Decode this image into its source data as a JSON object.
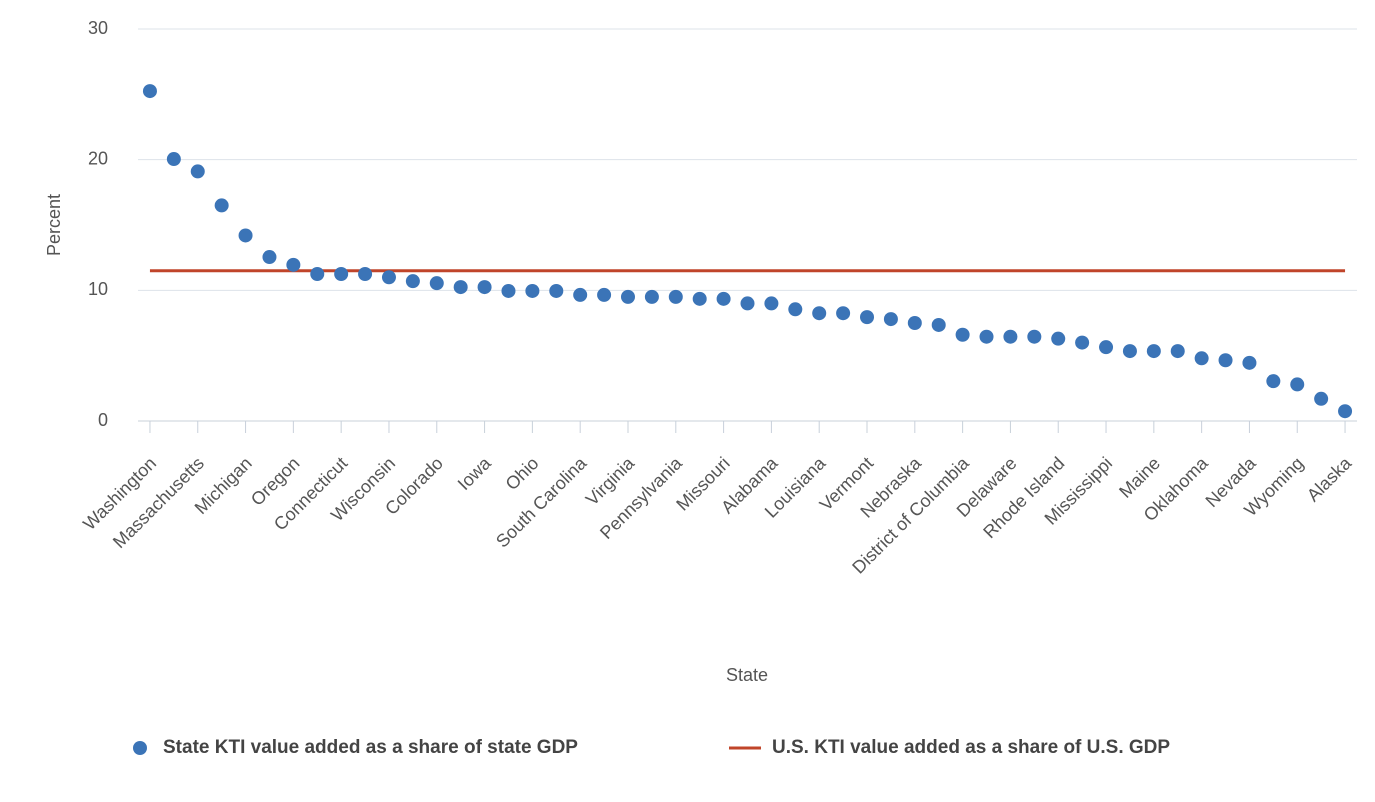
{
  "chart_data": {
    "type": "scatter",
    "x_label": "State",
    "y_label": "Percent",
    "categories": [
      "Washington",
      null,
      "Massachusetts",
      null,
      "Michigan",
      null,
      "Oregon",
      null,
      "Connecticut",
      null,
      "Wisconsin",
      null,
      "Colorado",
      null,
      "Iowa",
      null,
      "Ohio",
      null,
      "South Carolina",
      null,
      "Virginia",
      null,
      "Pennsylvania",
      null,
      "Missouri",
      null,
      "Alabama",
      null,
      "Louisiana",
      null,
      "Vermont",
      null,
      "Nebraska",
      null,
      "District of Columbia",
      null,
      "Delaware",
      null,
      "Rhode Island",
      null,
      "Mississippi",
      null,
      "Maine",
      null,
      "Oklahoma",
      null,
      "Nevada",
      null,
      "Wyoming",
      null,
      "Alaska"
    ],
    "series": [
      {
        "name": "State KTI value added as a share of state GDP",
        "color": "#3b74b7",
        "values": [
          25.25,
          20.05,
          19.1,
          16.5,
          14.2,
          12.55,
          11.95,
          11.25,
          11.25,
          11.25,
          11.0,
          10.7,
          10.55,
          10.25,
          10.25,
          9.95,
          9.95,
          9.95,
          9.65,
          9.65,
          9.5,
          9.5,
          9.5,
          9.35,
          9.35,
          9.0,
          9.0,
          8.55,
          8.25,
          8.25,
          7.95,
          7.8,
          7.5,
          7.35,
          6.6,
          6.45,
          6.45,
          6.45,
          6.3,
          6.0,
          5.65,
          5.35,
          5.35,
          5.35,
          4.8,
          4.65,
          4.45,
          3.05,
          2.8,
          1.7,
          0.75
        ]
      }
    ],
    "reference_line": {
      "name": "U.S. KTI value added as a share of U.S. GDP",
      "color": "#c0452a",
      "value": 11.5
    },
    "ylim": [
      0,
      30
    ],
    "yticks": [
      0,
      10,
      20,
      30
    ],
    "grid": true
  }
}
